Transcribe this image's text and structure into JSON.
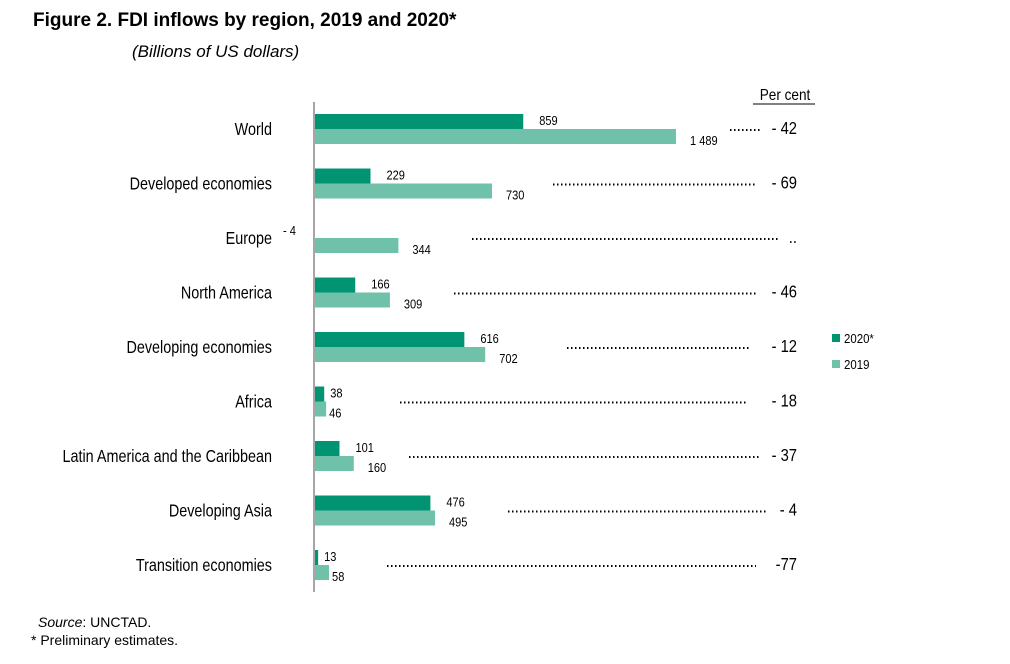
{
  "chart_data": {
    "type": "bar",
    "orientation": "horizontal",
    "title": "Figure 2. FDI inflows by region, 2019 and 2020*",
    "subtitle": "(Billions of US dollars)",
    "categories": [
      "World",
      "Developed economies",
      "Europe",
      "North America",
      "Developing economies",
      "Africa",
      "Latin America and the Caribbean",
      "Developing Asia",
      "Transition economies"
    ],
    "series": [
      {
        "name": "2020*",
        "color": "#009473",
        "values": [
          859,
          229,
          -4,
          166,
          616,
          38,
          101,
          476,
          13
        ],
        "labels": [
          "859",
          "229",
          "- 4",
          "166",
          "616",
          "38",
          "101",
          "476",
          "13"
        ]
      },
      {
        "name": "2019",
        "color": "#6fc1aa",
        "values": [
          1489,
          730,
          344,
          309,
          702,
          46,
          160,
          495,
          58
        ],
        "labels": [
          "1 489",
          "730",
          "344",
          "309",
          "702",
          "46",
          "160",
          "495",
          "58"
        ]
      }
    ],
    "percent_header": "Per cent",
    "percent_change": [
      "- 42",
      "- 69",
      "..",
      "- 46",
      "- 12",
      "- 18",
      "- 37",
      "- 4",
      "-77"
    ],
    "legend": {
      "position": "right",
      "entries": [
        "2020*",
        "2019"
      ]
    },
    "xlim": [
      0,
      1489
    ],
    "grid": false
  },
  "footer": {
    "source_label": "Source",
    "source_value": ": UNCTAD.",
    "note": "* Preliminary estimates."
  }
}
